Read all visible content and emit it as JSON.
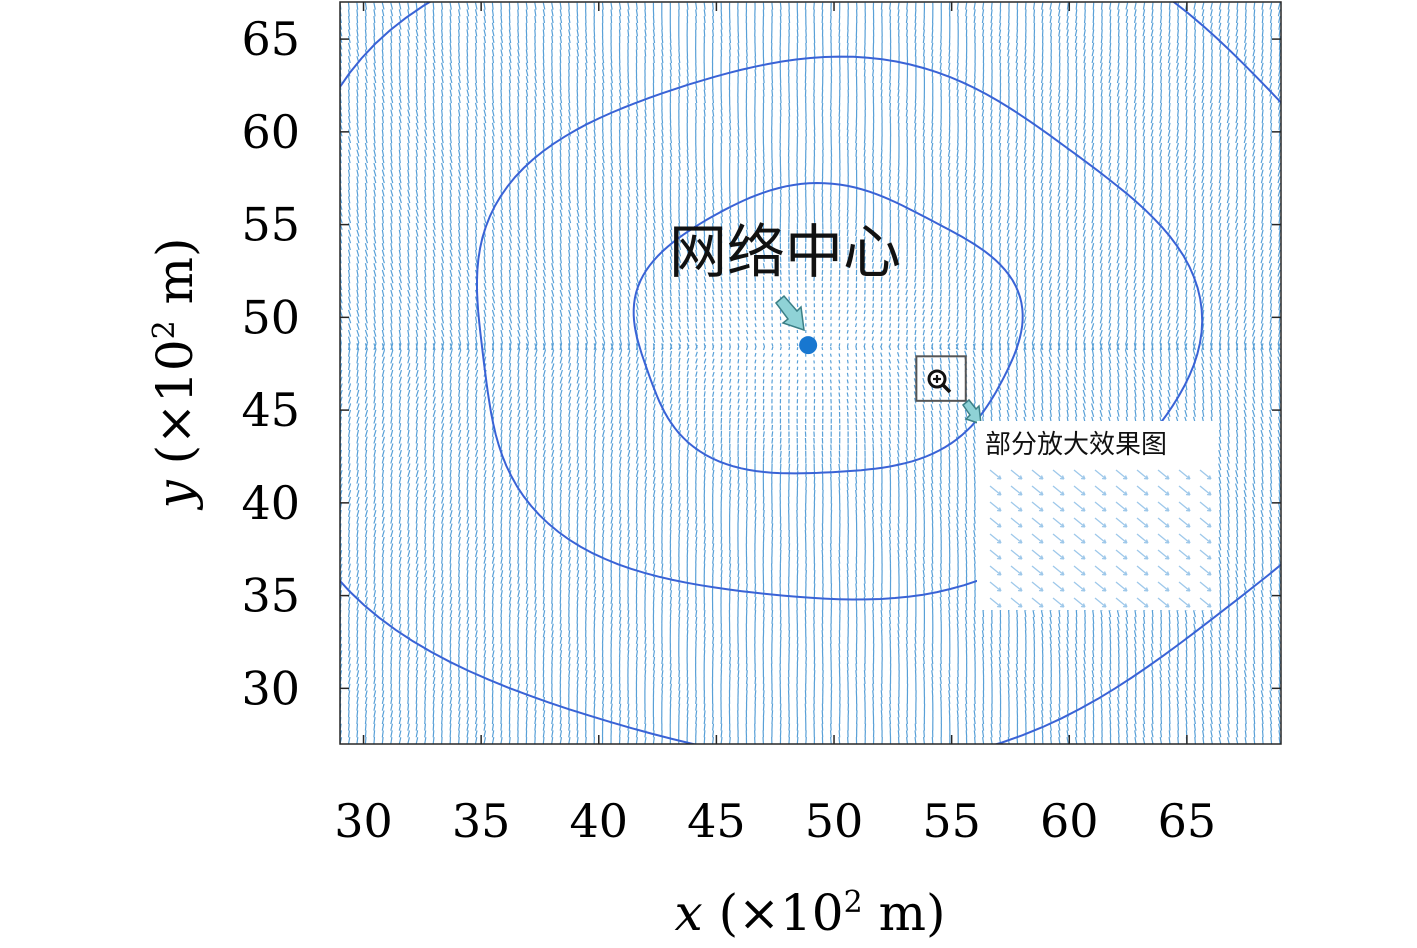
{
  "chart_data": {
    "type": "quiver",
    "title": "",
    "xlabel": "x (×10² m)",
    "ylabel": "y (×10² m)",
    "xlabel_parts": {
      "var": "x",
      "unit_pre": "(×10",
      "sup": "2",
      "unit_post": " m)"
    },
    "ylabel_parts": {
      "var": "y",
      "unit_pre": "(×10",
      "sup": "2",
      "unit_post": " m)"
    },
    "xlim": [
      29,
      69
    ],
    "ylim": [
      27,
      67
    ],
    "xticks": [
      30,
      35,
      40,
      45,
      50,
      55,
      60,
      65
    ],
    "yticks": [
      30,
      35,
      40,
      45,
      50,
      55,
      60,
      65
    ],
    "grid": false,
    "field_center": [
      48.9,
      48.5
    ],
    "field_color": "#3c8fd0",
    "contour_color": "#3a63d6",
    "contour_radii": [
      7.8,
      14.6,
      23
    ],
    "annotations": {
      "network_center_label": "网络中心",
      "zoom_label": "部分放大效果图",
      "zoom_region": {
        "x": [
          53.5,
          55.6
        ],
        "y": [
          45.5,
          47.9
        ]
      }
    }
  }
}
